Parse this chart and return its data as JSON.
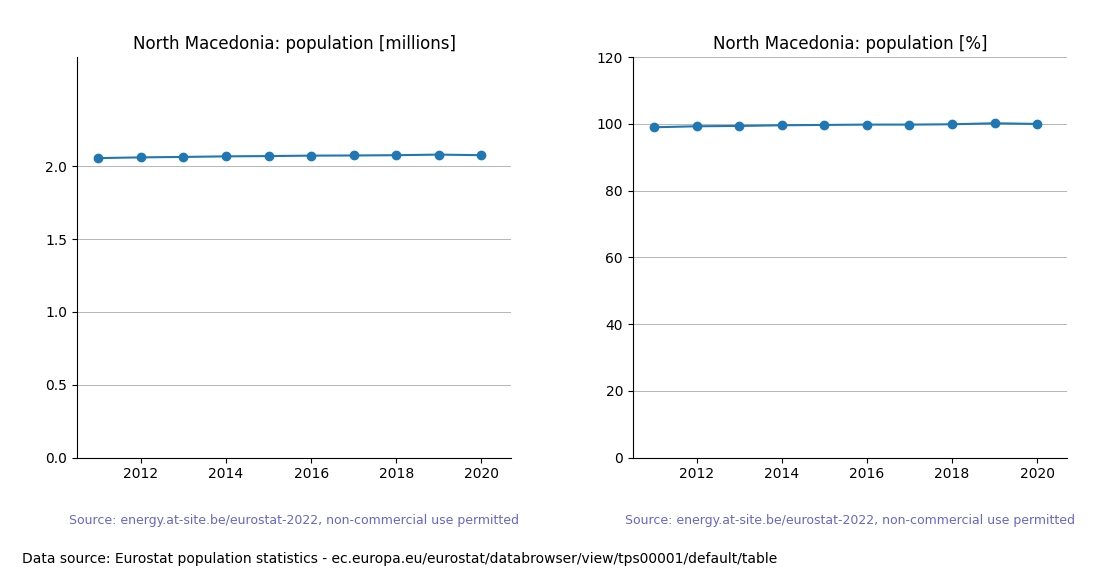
{
  "years": [
    2011,
    2012,
    2013,
    2014,
    2015,
    2016,
    2017,
    2018,
    2019,
    2020
  ],
  "population_millions": [
    2.057,
    2.062,
    2.065,
    2.069,
    2.071,
    2.074,
    2.075,
    2.077,
    2.081,
    2.077
  ],
  "population_pct": [
    99.0,
    99.3,
    99.4,
    99.6,
    99.7,
    99.8,
    99.8,
    99.9,
    100.2,
    100.0
  ],
  "title_millions": "North Macedonia: population [millions]",
  "title_pct": "North Macedonia: population [%]",
  "source_text": "Source: energy.at-site.be/eurostat-2022, non-commercial use permitted",
  "footer_text": "Data source: Eurostat population statistics - ec.europa.eu/eurostat/databrowser/view/tps00001/default/table",
  "line_color": "#1f77b4",
  "source_color": "#6666cc",
  "ylim_millions": [
    0.0,
    2.75
  ],
  "ylim_pct": [
    0,
    120
  ],
  "yticks_millions": [
    0.0,
    0.5,
    1.0,
    1.5,
    2.0
  ],
  "yticks_pct": [
    0,
    20,
    40,
    60,
    80,
    100,
    120
  ],
  "xticks_shown": [
    2012,
    2014,
    2016,
    2018,
    2020
  ],
  "marker_size": 6,
  "line_width": 1.5,
  "grid_color": "#aaaaaa",
  "grid_linewidth": 0.6,
  "title_fontsize": 12,
  "tick_fontsize": 10,
  "source_fontsize": 9,
  "footer_fontsize": 10
}
